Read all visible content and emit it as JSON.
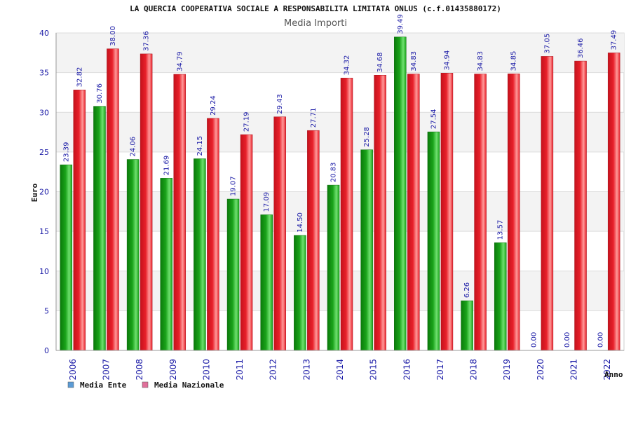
{
  "chart_data": {
    "type": "bar",
    "title": "LA QUERCIA COOPERATIVA SOCIALE A RESPONSABILITA LIMITATA ONLUS (c.f.01435880172)",
    "subtitle": "Media Importi",
    "xlabel": "Anno",
    "ylabel": "Euro",
    "ylim": [
      0,
      40
    ],
    "yticks": [
      "0",
      "5",
      "10",
      "15",
      "20",
      "25",
      "30",
      "35",
      "40"
    ],
    "grid": true,
    "legend_position": "bottom-left",
    "categories": [
      "2006",
      "2007",
      "2008",
      "2009",
      "2010",
      "2011",
      "2012",
      "2013",
      "2014",
      "2015",
      "2016",
      "2017",
      "2018",
      "2019",
      "2020",
      "2021",
      "2022"
    ],
    "series": [
      {
        "name": "Media Ente",
        "legend_color": "#5b9bd5",
        "bar_color": "#1aa31a",
        "values": [
          23.39,
          30.76,
          24.06,
          21.69,
          24.15,
          19.07,
          17.09,
          14.5,
          20.83,
          25.28,
          39.49,
          27.54,
          6.26,
          13.57,
          0.0,
          0.0,
          0.0
        ],
        "labels": [
          "23.39",
          "30.76",
          "24.06",
          "21.69",
          "24.15",
          "19.07",
          "17.09",
          "14.50",
          "20.83",
          "25.28",
          "39.49",
          "27.54",
          "6.26",
          "13.57",
          "0.00",
          "0.00",
          "0.00"
        ]
      },
      {
        "name": "Media Nazionale",
        "legend_color": "#e0709a",
        "bar_color": "#e8202a",
        "values": [
          32.82,
          38.0,
          37.36,
          34.79,
          29.24,
          27.19,
          29.43,
          27.71,
          34.32,
          34.68,
          34.83,
          34.94,
          34.83,
          34.85,
          37.05,
          36.46,
          37.49
        ],
        "labels": [
          "32.82",
          "38.00",
          "37.36",
          "34.79",
          "29.24",
          "27.19",
          "29.43",
          "27.71",
          "34.32",
          "34.68",
          "34.83",
          "34.94",
          "34.83",
          "34.85",
          "37.05",
          "36.46",
          "37.49"
        ]
      }
    ]
  }
}
